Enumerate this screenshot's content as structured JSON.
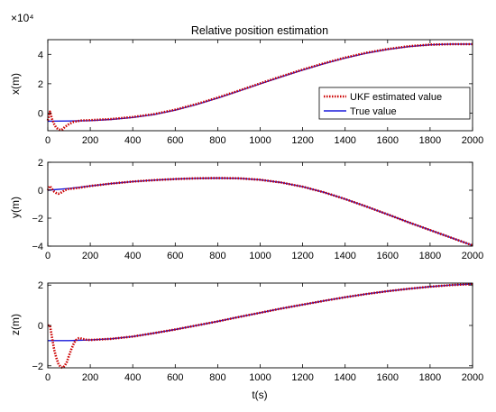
{
  "colors": {
    "estimated": "#cc0000",
    "true": "#1a1adb",
    "axis": "#000000",
    "background": "#ffffff"
  },
  "chart_data": [
    {
      "type": "line",
      "title": "Relative position estimation",
      "xlabel": "",
      "ylabel": "x(m)",
      "scale_label": "×10⁴",
      "xlim": [
        0,
        2000
      ],
      "ylim": [
        -1.2,
        5
      ],
      "xticks": [
        0,
        200,
        400,
        600,
        800,
        1000,
        1200,
        1400,
        1600,
        1800,
        2000
      ],
      "yticks": [
        0,
        2,
        4
      ],
      "grid": false,
      "legend": {
        "placement": "right",
        "entries": [
          "UKF estimated value",
          "True value"
        ]
      },
      "series": [
        {
          "name": "UKF estimated value",
          "style": "dotted",
          "x": [
            0,
            10,
            20,
            30,
            40,
            50,
            60,
            70,
            80,
            100,
            120,
            140,
            160,
            200,
            300,
            400,
            500,
            600,
            700,
            800,
            900,
            1000,
            1100,
            1200,
            1300,
            1400,
            1500,
            1600,
            1700,
            1800,
            1900,
            2000
          ],
          "y": [
            -0.5,
            0.1,
            -0.4,
            -0.75,
            -1.0,
            -1.1,
            -1.15,
            -1.1,
            -0.95,
            -0.75,
            -0.6,
            -0.55,
            -0.5,
            -0.48,
            -0.4,
            -0.27,
            -0.07,
            0.23,
            0.62,
            1.05,
            1.53,
            2.02,
            2.5,
            2.96,
            3.39,
            3.78,
            4.11,
            4.36,
            4.55,
            4.66,
            4.69,
            4.69
          ]
        },
        {
          "name": "True value",
          "style": "solid",
          "x": [
            0,
            100,
            200,
            300,
            400,
            500,
            600,
            700,
            800,
            900,
            1000,
            1100,
            1200,
            1300,
            1400,
            1500,
            1600,
            1700,
            1800,
            1900,
            2000
          ],
          "y": [
            -0.55,
            -0.54,
            -0.51,
            -0.43,
            -0.3,
            -0.1,
            0.2,
            0.58,
            1.02,
            1.5,
            1.99,
            2.47,
            2.93,
            3.36,
            3.75,
            4.08,
            4.34,
            4.53,
            4.65,
            4.7,
            4.7
          ]
        }
      ]
    },
    {
      "type": "line",
      "title": "",
      "xlabel": "",
      "ylabel": "y(m)",
      "xlim": [
        0,
        2000
      ],
      "ylim": [
        -4,
        2
      ],
      "xticks": [
        0,
        200,
        400,
        600,
        800,
        1000,
        1200,
        1400,
        1600,
        1800,
        2000
      ],
      "yticks": [
        -4,
        -2,
        0,
        2
      ],
      "grid": false,
      "series": [
        {
          "name": "UKF estimated value",
          "style": "dotted",
          "x": [
            0,
            10,
            20,
            30,
            40,
            50,
            60,
            70,
            80,
            100,
            120,
            150,
            200,
            300,
            400,
            500,
            600,
            700,
            800,
            900,
            1000,
            1100,
            1200,
            1300,
            1400,
            1500,
            1600,
            1700,
            1800,
            1900,
            2000
          ],
          "y": [
            0,
            0.3,
            0.1,
            -0.1,
            -0.2,
            -0.25,
            -0.2,
            -0.1,
            0.0,
            0.1,
            0.12,
            0.18,
            0.3,
            0.48,
            0.62,
            0.72,
            0.8,
            0.85,
            0.87,
            0.85,
            0.75,
            0.55,
            0.25,
            -0.15,
            -0.63,
            -1.17,
            -1.73,
            -2.3,
            -2.85,
            -3.4,
            -3.95
          ]
        },
        {
          "name": "True value",
          "style": "solid",
          "x": [
            0,
            100,
            200,
            300,
            400,
            500,
            600,
            700,
            800,
            900,
            1000,
            1100,
            1200,
            1300,
            1400,
            1500,
            1600,
            1700,
            1800,
            1900,
            2000
          ],
          "y": [
            0,
            0.12,
            0.3,
            0.48,
            0.62,
            0.72,
            0.8,
            0.85,
            0.87,
            0.85,
            0.75,
            0.55,
            0.25,
            -0.15,
            -0.63,
            -1.17,
            -1.73,
            -2.3,
            -2.85,
            -3.4,
            -3.95
          ]
        }
      ]
    },
    {
      "type": "line",
      "title": "",
      "xlabel": "t(s)",
      "ylabel": "z(m)",
      "xlim": [
        0,
        2000
      ],
      "ylim": [
        -2.1,
        2.1
      ],
      "xticks": [
        0,
        200,
        400,
        600,
        800,
        1000,
        1200,
        1400,
        1600,
        1800,
        2000
      ],
      "yticks": [
        -2,
        0,
        2
      ],
      "grid": false,
      "series": [
        {
          "name": "UKF estimated value",
          "style": "dotted",
          "x": [
            0,
            10,
            20,
            30,
            40,
            50,
            60,
            70,
            80,
            90,
            100,
            110,
            120,
            130,
            140,
            150,
            160,
            180,
            200,
            300,
            400,
            500,
            600,
            700,
            800,
            900,
            1000,
            1100,
            1200,
            1300,
            1400,
            1500,
            1600,
            1700,
            1800,
            1900,
            2000
          ],
          "y": [
            0,
            0,
            -0.6,
            -1.2,
            -1.6,
            -1.9,
            -2.05,
            -2.1,
            -2.0,
            -1.8,
            -1.5,
            -1.2,
            -0.95,
            -0.75,
            -0.65,
            -0.62,
            -0.66,
            -0.7,
            -0.72,
            -0.66,
            -0.55,
            -0.38,
            -0.2,
            0.0,
            0.2,
            0.42,
            0.63,
            0.84,
            1.03,
            1.22,
            1.4,
            1.56,
            1.7,
            1.82,
            1.92,
            2.0,
            2.05
          ]
        },
        {
          "name": "True value",
          "style": "solid",
          "x": [
            0,
            100,
            200,
            300,
            400,
            500,
            600,
            700,
            800,
            900,
            1000,
            1100,
            1200,
            1300,
            1400,
            1500,
            1600,
            1700,
            1800,
            1900,
            2000
          ],
          "y": [
            -0.75,
            -0.75,
            -0.72,
            -0.66,
            -0.55,
            -0.38,
            -0.2,
            0.0,
            0.2,
            0.42,
            0.63,
            0.84,
            1.03,
            1.22,
            1.4,
            1.56,
            1.7,
            1.82,
            1.92,
            2.0,
            2.05
          ]
        }
      ]
    }
  ]
}
